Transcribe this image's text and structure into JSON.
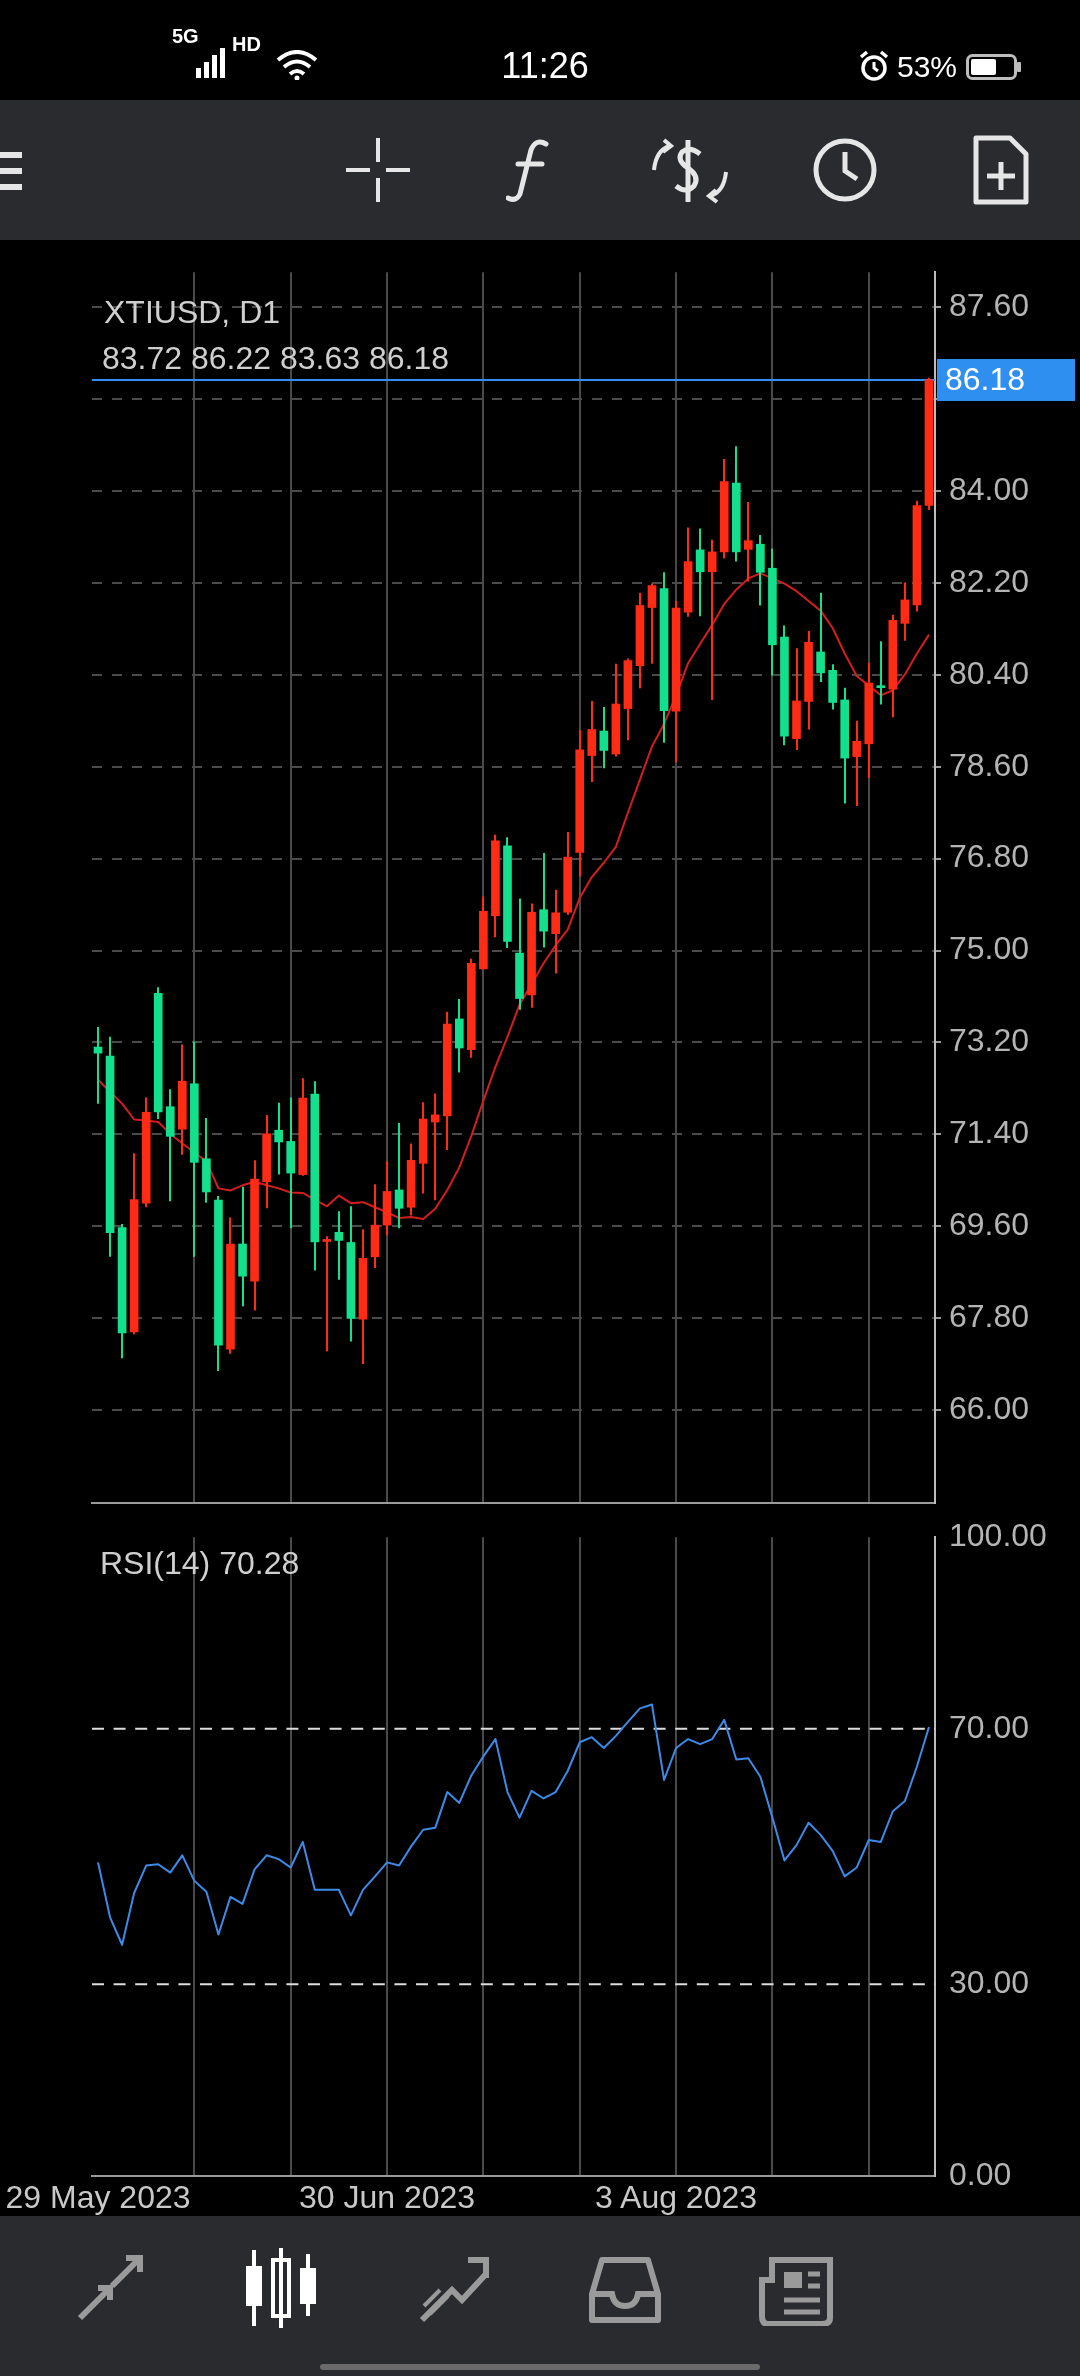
{
  "chart_data": [
    {
      "type": "candlestick",
      "title": "XTIUSD, D1",
      "subtitle": "83.72 86.22 83.63 86.18",
      "categories": [
        null,
        null,
        null,
        null,
        null,
        null,
        null,
        null,
        null,
        null,
        null,
        null,
        null,
        null,
        null,
        null,
        null,
        null,
        null,
        null,
        null,
        null,
        null,
        null,
        null,
        null,
        null,
        null,
        null,
        null,
        null,
        null,
        null,
        null,
        null,
        null,
        null,
        null,
        null,
        null,
        null,
        null,
        null,
        null,
        null,
        null,
        null,
        null,
        null,
        null,
        null,
        null,
        null,
        null,
        null,
        null,
        null,
        null,
        null,
        null,
        null,
        null,
        null,
        null,
        null,
        null,
        null,
        null,
        null,
        null
      ],
      "ohlc": [
        [
          73.11,
          73.5,
          72.0,
          72.99
        ],
        [
          72.93,
          73.31,
          69.0,
          69.47
        ],
        [
          69.57,
          69.64,
          67.01,
          67.51
        ],
        [
          67.53,
          71.03,
          67.48,
          70.12
        ],
        [
          70.05,
          72.12,
          69.97,
          71.83
        ],
        [
          74.16,
          74.28,
          71.7,
          71.84
        ],
        [
          71.94,
          72.28,
          70.09,
          71.36
        ],
        [
          71.5,
          73.16,
          71.0,
          72.44
        ],
        [
          72.39,
          73.22,
          69.0,
          70.85
        ],
        [
          70.92,
          71.72,
          70.06,
          70.27
        ],
        [
          70.11,
          70.19,
          66.76,
          67.27
        ],
        [
          67.19,
          69.77,
          67.1,
          69.25
        ],
        [
          69.25,
          70.37,
          68.03,
          68.62
        ],
        [
          68.52,
          70.89,
          67.95,
          70.52
        ],
        [
          70.47,
          71.78,
          69.95,
          71.41
        ],
        [
          71.48,
          72.02,
          70.61,
          71.25
        ],
        [
          71.26,
          72.12,
          69.56,
          70.64
        ],
        [
          70.61,
          72.5,
          70.59,
          72.11
        ],
        [
          72.19,
          72.44,
          68.73,
          69.29
        ],
        [
          69.3,
          69.4,
          67.15,
          69.34
        ],
        [
          69.48,
          69.89,
          68.55,
          69.32
        ],
        [
          69.28,
          69.99,
          67.34,
          67.79
        ],
        [
          67.78,
          69.54,
          66.9,
          68.97
        ],
        [
          69.0,
          70.42,
          68.78,
          69.62
        ],
        [
          69.62,
          70.87,
          69.42,
          70.28
        ],
        [
          70.31,
          71.62,
          69.56,
          69.95
        ],
        [
          69.97,
          71.22,
          69.81,
          70.89
        ],
        [
          70.83,
          72.03,
          70.24,
          71.7
        ],
        [
          71.64,
          72.2,
          70.11,
          71.78
        ],
        [
          71.76,
          73.8,
          71.09,
          73.56
        ],
        [
          73.66,
          74.05,
          72.61,
          73.09
        ],
        [
          73.06,
          74.84,
          72.9,
          74.75
        ],
        [
          74.64,
          76.06,
          74.63,
          75.77
        ],
        [
          75.68,
          77.27,
          75.26,
          77.15
        ],
        [
          77.05,
          77.22,
          75.05,
          75.18
        ],
        [
          74.95,
          76.02,
          73.84,
          74.06
        ],
        [
          74.13,
          75.92,
          73.88,
          75.75
        ],
        [
          75.8,
          76.91,
          75.06,
          75.38
        ],
        [
          75.33,
          76.19,
          74.55,
          75.74
        ],
        [
          75.75,
          77.32,
          75.7,
          76.83
        ],
        [
          76.92,
          79.32,
          76.45,
          78.93
        ],
        [
          78.82,
          79.89,
          78.3,
          79.33
        ],
        [
          79.3,
          79.77,
          78.57,
          78.92
        ],
        [
          78.85,
          80.62,
          78.8,
          79.83
        ],
        [
          79.74,
          80.72,
          79.12,
          80.68
        ],
        [
          80.58,
          82.01,
          80.14,
          81.76
        ],
        [
          81.72,
          82.19,
          80.62,
          82.15
        ],
        [
          82.09,
          82.41,
          79.07,
          79.7
        ],
        [
          79.69,
          81.85,
          78.69,
          81.71
        ],
        [
          81.63,
          83.29,
          81.54,
          82.62
        ],
        [
          82.85,
          83.27,
          81.55,
          82.42
        ],
        [
          82.42,
          83.05,
          79.91,
          82.81
        ],
        [
          82.81,
          84.63,
          82.68,
          84.19
        ],
        [
          84.16,
          84.88,
          82.62,
          82.81
        ],
        [
          82.86,
          83.79,
          82.23,
          83.03
        ],
        [
          82.96,
          83.14,
          81.76,
          82.41
        ],
        [
          82.49,
          82.87,
          80.39,
          80.99
        ],
        [
          81.14,
          81.37,
          79.02,
          79.2
        ],
        [
          79.15,
          80.92,
          78.93,
          79.89
        ],
        [
          79.88,
          81.26,
          79.33,
          81.04
        ],
        [
          80.85,
          82.01,
          80.26,
          80.44
        ],
        [
          80.49,
          80.61,
          79.72,
          79.86
        ],
        [
          79.91,
          80.15,
          77.88,
          78.77
        ],
        [
          78.8,
          79.5,
          77.83,
          79.1
        ],
        [
          79.05,
          80.64,
          78.38,
          80.24
        ],
        [
          80.19,
          81.06,
          79.82,
          80.15
        ],
        [
          80.12,
          81.58,
          79.57,
          81.47
        ],
        [
          81.41,
          82.21,
          81.07,
          81.87
        ],
        [
          81.77,
          83.81,
          81.64,
          83.72
        ],
        [
          83.72,
          86.22,
          83.63,
          86.18
        ]
      ],
      "colors": [
        "#12e08c",
        "#12e08c",
        "#12e08c",
        "#ff2b14",
        "#ff2b14",
        "#12e08c",
        "#12e08c",
        "#ff2b14",
        "#12e08c",
        "#12e08c",
        "#12e08c",
        "#ff2b14",
        "#12e08c",
        "#ff2b14",
        "#ff2b14",
        "#12e08c",
        "#12e08c",
        "#ff2b14",
        "#12e08c",
        "#ff2b14",
        "#12e08c",
        "#12e08c",
        "#ff2b14",
        "#ff2b14",
        "#ff2b14",
        "#12e08c",
        "#ff2b14",
        "#ff2b14",
        "#ff2b14",
        "#ff2b14",
        "#12e08c",
        "#ff2b14",
        "#ff2b14",
        "#ff2b14",
        "#12e08c",
        "#12e08c",
        "#ff2b14",
        "#12e08c",
        "#ff2b14",
        "#ff2b14",
        "#ff2b14",
        "#ff2b14",
        "#12e08c",
        "#ff2b14",
        "#ff2b14",
        "#ff2b14",
        "#ff2b14",
        "#12e08c",
        "#ff2b14",
        "#ff2b14",
        "#12e08c",
        "#ff2b14",
        "#ff2b14",
        "#12e08c",
        "#ff2b14",
        "#12e08c",
        "#12e08c",
        "#12e08c",
        "#ff2b14",
        "#ff2b14",
        "#12e08c",
        "#12e08c",
        "#12e08c",
        "#ff2b14",
        "#ff2b14",
        "#12e08c",
        "#ff2b14",
        "#ff2b14",
        "#ff2b14",
        "#ff2b14"
      ],
      "series": [
        {
          "type": "line",
          "color": "#d41e1e",
          "values": [
            72.47,
            null,
            72.0,
            71.69,
            71.67,
            71.64,
            71.41,
            71.22,
            null,
            70.87,
            70.34,
            70.3,
            70.4,
            70.47,
            70.4,
            70.34,
            70.26,
            70.25,
            null,
            69.99,
            70.2,
            70.05,
            70.07,
            69.97,
            69.87,
            69.76,
            69.78,
            69.74,
            69.94,
            70.31,
            70.75,
            71.37,
            72.06,
            72.72,
            73.31,
            73.94,
            74.34,
            74.75,
            75.1,
            75.41,
            76.03,
            76.44,
            76.72,
            77.03,
            77.7,
            78.35,
            79.0,
            79.44,
            80.0,
            80.63,
            81.01,
            81.38,
            81.79,
            82.07,
            82.29,
            82.39,
            null,
            82.19,
            82.04,
            81.85,
            81.66,
            81.32,
            80.82,
            80.38,
            80.19,
            80.0,
            80.1,
            80.41,
            80.82,
            81.19
          ]
        }
      ],
      "ylim": [
        64.18,
        88.29
      ],
      "yticks": [
        {
          "value": 66,
          "label": "66.00"
        },
        {
          "value": 67.8,
          "label": "67.80"
        },
        {
          "value": 69.6,
          "label": "69.60"
        },
        {
          "value": 71.4,
          "label": "71.40"
        },
        {
          "value": 73.2,
          "label": "73.20"
        },
        {
          "value": 75,
          "label": "75.00"
        },
        {
          "value": 76.8,
          "label": "76.80"
        },
        {
          "value": 78.6,
          "label": "78.60"
        },
        {
          "value": 80.4,
          "label": "80.40"
        },
        {
          "value": 82.2,
          "label": "82.20"
        },
        {
          "value": 84,
          "label": "84.00"
        },
        {
          "value": 85.8,
          "label": null
        },
        {
          "value": 87.6,
          "label": "87.60"
        }
      ],
      "grid": true,
      "tick_labels": "y",
      "ref_lines": [
        {
          "axis": "y",
          "value": 86.18,
          "label": "86.18",
          "color": "#2f8ff0"
        }
      ],
      "annotations": [
        "5G",
        "HD",
        "11:26",
        "53%"
      ]
    },
    {
      "type": "line",
      "title": "RSI(14) 70.28",
      "categories": [
        "29 May 2023",
        null,
        null,
        null,
        null,
        null,
        null,
        null,
        null,
        null,
        null,
        null,
        null,
        null,
        null,
        null,
        null,
        null,
        null,
        null,
        null,
        null,
        null,
        null,
        "30 Jun 2023",
        null,
        null,
        null,
        null,
        null,
        null,
        null,
        null,
        null,
        null,
        null,
        null,
        null,
        null,
        null,
        null,
        null,
        null,
        null,
        null,
        null,
        null,
        null,
        "3 Aug 2023",
        null,
        null,
        null,
        null,
        null,
        null,
        null,
        null,
        null,
        null,
        null,
        null,
        null,
        null,
        null,
        null,
        null,
        null,
        null,
        null,
        null
      ],
      "series": [
        {
          "color": "#3d8ae8",
          "values": [
            49.1,
            40.5,
            36.2,
            44.3,
            48.6,
            48.8,
            47.5,
            50.2,
            46.2,
            44.5,
            37.8,
            43.7,
            42.6,
            48.0,
            50.2,
            49.6,
            48.3,
            52.3,
            44.8,
            44.8,
            44.8,
            40.8,
            44.8,
            46.9,
            49.1,
            48.6,
            51.6,
            54.2,
            54.5,
            60.1,
            58.4,
            62.7,
            65.7,
            68.4,
            60.1,
            56.1,
            60.3,
            59.1,
            60.1,
            63.4,
            67.9,
            68.7,
            67.0,
            68.9,
            71.1,
            73.2,
            73.8,
            62.0,
            67.0,
            68.4,
            67.6,
            68.4,
            71.4,
            65.2,
            65.4,
            62.5,
            56.1,
            49.4,
            51.8,
            55.3,
            53.4,
            50.9,
            46.9,
            48.3,
            52.6,
            52.3,
            57.1,
            58.7,
            64.1,
            70.28
          ]
        }
      ],
      "ylim": [
        0,
        100
      ],
      "yticks": [
        {
          "value": 0,
          "label": "0.00"
        },
        {
          "value": 30,
          "label": "30.00"
        },
        {
          "value": 70,
          "label": "70.00"
        },
        {
          "value": 100,
          "label": "100.00"
        }
      ],
      "grid": "x",
      "ref_lines": [
        {
          "axis": "y",
          "value": 30,
          "color": "#dddddd",
          "line_style": "dashed"
        },
        {
          "axis": "y",
          "value": 70,
          "color": "#dddddd",
          "line_style": "dashed"
        }
      ]
    }
  ]
}
